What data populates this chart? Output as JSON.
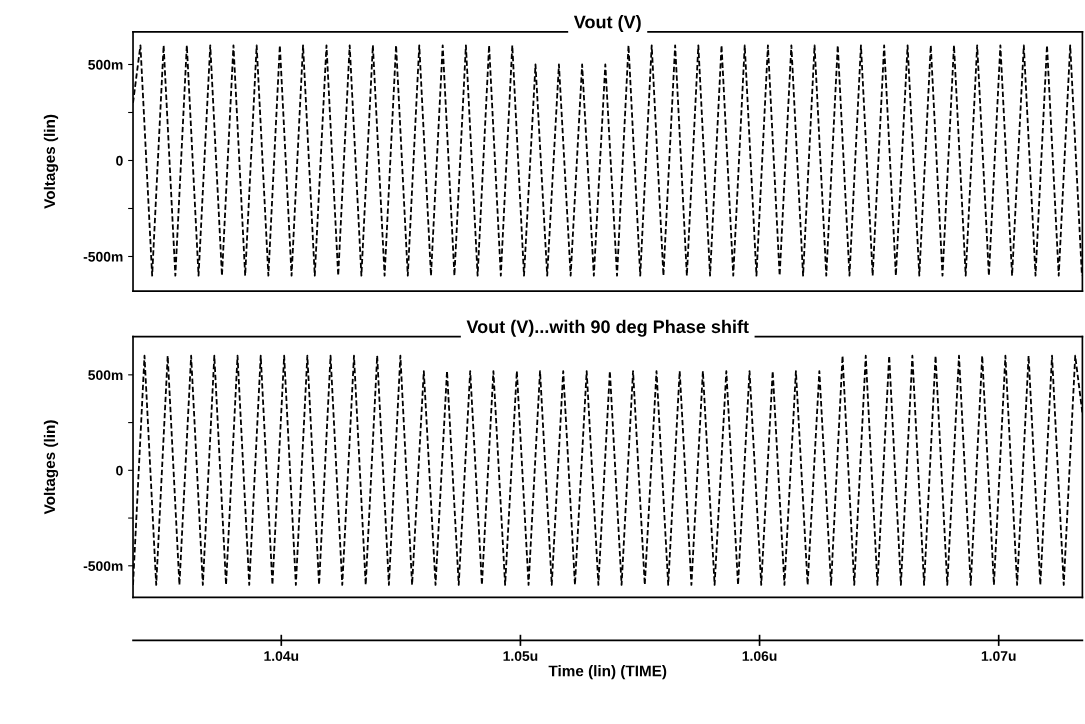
{
  "chart_data": [
    {
      "type": "line",
      "title": "Vout (V)",
      "ylabel": "Voltages (lin)",
      "xlim": [
        1.0338,
        1.0735
      ],
      "ylim": [
        -680,
        670
      ],
      "yticks": [
        {
          "value": 500,
          "label": "500m"
        },
        {
          "value": 250,
          "label": null
        },
        {
          "value": 0,
          "label": "0"
        },
        {
          "value": -250,
          "label": null
        },
        {
          "value": -500,
          "label": "-500m"
        }
      ],
      "tick_labels": "y",
      "grid": false,
      "legend": false,
      "line_style": "dashed",
      "marker": "none",
      "x": [
        1.0338,
        1.03411,
        1.0346,
        1.03508,
        1.03557,
        1.03605,
        1.03654,
        1.03703,
        1.03752,
        1.038,
        1.03849,
        1.03897,
        1.03946,
        1.03994,
        1.04043,
        1.04091,
        1.0414,
        1.04189,
        1.04238,
        1.04286,
        1.04335,
        1.04383,
        1.04432,
        1.0448,
        1.04529,
        1.04577,
        1.04626,
        1.04675,
        1.04724,
        1.04772,
        1.04821,
        1.04869,
        1.04918,
        1.04966,
        1.05015,
        1.05063,
        1.05112,
        1.05161,
        1.0521,
        1.05258,
        1.05307,
        1.05355,
        1.05404,
        1.05452,
        1.05501,
        1.05549,
        1.05598,
        1.05647,
        1.05696,
        1.05744,
        1.05793,
        1.05841,
        1.0589,
        1.05938,
        1.05987,
        1.06035,
        1.06084,
        1.06133,
        1.06182,
        1.0623,
        1.06279,
        1.06327,
        1.06376,
        1.06424,
        1.06473,
        1.06521,
        1.0657,
        1.06619,
        1.06668,
        1.06716,
        1.06765,
        1.06813,
        1.06862,
        1.0691,
        1.06959,
        1.07007,
        1.07056,
        1.07105,
        1.07154,
        1.07202,
        1.07251,
        1.07299,
        1.07348
      ],
      "series": [
        {
          "color": "#000000",
          "values": [
            300,
            600,
            -600,
            600,
            -600,
            600,
            -600,
            600,
            -600,
            600,
            -600,
            600,
            -600,
            600,
            -600,
            600,
            -600,
            600,
            -600,
            600,
            -600,
            600,
            -600,
            600,
            -600,
            600,
            -600,
            600,
            -600,
            600,
            -600,
            600,
            -600,
            600,
            -600,
            500,
            -600,
            500,
            -600,
            500,
            -600,
            500,
            -600,
            600,
            -600,
            600,
            -600,
            600,
            -600,
            600,
            -600,
            600,
            -600,
            600,
            -600,
            600,
            -600,
            600,
            -600,
            600,
            -600,
            600,
            -600,
            600,
            -600,
            600,
            -600,
            600,
            -600,
            600,
            -600,
            600,
            -600,
            600,
            -600,
            600,
            -600,
            600,
            -600,
            600,
            -600,
            600,
            -600
          ]
        }
      ]
    },
    {
      "type": "line",
      "title": "Vout (V)...with 90 deg Phase shift",
      "ylabel": "Voltages (lin)",
      "xlabel": "Time (lin) (TIME)",
      "xlim": [
        1.0338,
        1.0735
      ],
      "ylim": [
        -665,
        700
      ],
      "xticks": [
        {
          "value": 1.04,
          "label": "1.04u"
        },
        {
          "value": 1.05,
          "label": "1.05u"
        },
        {
          "value": 1.06,
          "label": "1.06u"
        },
        {
          "value": 1.07,
          "label": "1.07u"
        }
      ],
      "yticks": [
        {
          "value": 500,
          "label": "500m"
        },
        {
          "value": 250,
          "label": null
        },
        {
          "value": 0,
          "label": "0"
        },
        {
          "value": -250,
          "label": null
        },
        {
          "value": -500,
          "label": "-500m"
        }
      ],
      "grid": false,
      "legend": false,
      "line_style": "dashed",
      "marker": "none",
      "x": [
        1.0338,
        1.03428,
        1.03477,
        1.03525,
        1.03574,
        1.03623,
        1.03672,
        1.0372,
        1.03769,
        1.03817,
        1.03866,
        1.03914,
        1.03963,
        1.04012,
        1.04061,
        1.04109,
        1.04158,
        1.04206,
        1.04255,
        1.04304,
        1.04353,
        1.04401,
        1.0445,
        1.04498,
        1.04547,
        1.04596,
        1.04645,
        1.04693,
        1.04742,
        1.0479,
        1.04839,
        1.04887,
        1.04936,
        1.04985,
        1.05034,
        1.05082,
        1.05131,
        1.05179,
        1.05228,
        1.05277,
        1.05326,
        1.05374,
        1.05423,
        1.05471,
        1.0552,
        1.05569,
        1.05618,
        1.05666,
        1.05715,
        1.05763,
        1.05812,
        1.05861,
        1.0591,
        1.05958,
        1.06007,
        1.06055,
        1.06104,
        1.06152,
        1.06201,
        1.0625,
        1.06299,
        1.06347,
        1.06396,
        1.06444,
        1.06493,
        1.06542,
        1.06591,
        1.06639,
        1.06688,
        1.06736,
        1.06785,
        1.06834,
        1.06883,
        1.06931,
        1.0698,
        1.07028,
        1.07077,
        1.07125,
        1.07174,
        1.07223,
        1.07272,
        1.0732,
        1.0735
      ],
      "series": [
        {
          "color": "#000000",
          "values": [
            -600,
            600,
            -600,
            600,
            -600,
            600,
            -600,
            600,
            -600,
            600,
            -600,
            600,
            -600,
            600,
            -600,
            600,
            -600,
            600,
            -600,
            600,
            -600,
            600,
            -600,
            600,
            -600,
            520,
            -600,
            520,
            -600,
            520,
            -600,
            520,
            -600,
            520,
            -600,
            520,
            -600,
            520,
            -600,
            520,
            -600,
            520,
            -600,
            520,
            -600,
            520,
            -600,
            520,
            -600,
            520,
            -600,
            520,
            -600,
            520,
            -600,
            520,
            -600,
            520,
            -600,
            520,
            -600,
            600,
            -600,
            600,
            -600,
            600,
            -600,
            600,
            -600,
            600,
            -600,
            600,
            -600,
            600,
            -600,
            600,
            -600,
            600,
            -600,
            600,
            -600,
            600,
            300
          ]
        }
      ]
    }
  ]
}
